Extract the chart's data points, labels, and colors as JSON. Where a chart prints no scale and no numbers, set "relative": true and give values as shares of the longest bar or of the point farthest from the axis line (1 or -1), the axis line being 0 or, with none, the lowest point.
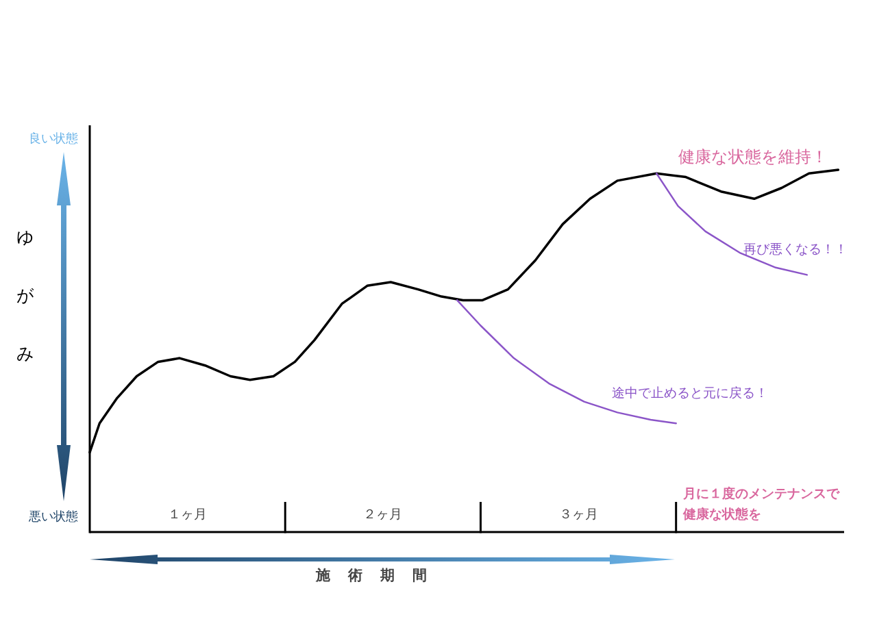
{
  "chart_data": {
    "type": "line",
    "relative": true,
    "xlabel": "施術期間",
    "ylabel": "ゆがみ",
    "xlim": [
      0,
      3.86
    ],
    "xticks": [
      {
        "value": 0.5,
        "label": "１ヶ月"
      },
      {
        "value": 1.5,
        "label": "２ヶ月"
      },
      {
        "value": 2.5,
        "label": "３ヶ月"
      }
    ],
    "ref_lines": [
      {
        "axis": "x",
        "value": 1,
        "color": "#000000"
      },
      {
        "axis": "x",
        "value": 2,
        "color": "#000000"
      },
      {
        "axis": "x",
        "value": 3,
        "color": "#000000"
      }
    ],
    "series": [
      {
        "color": "#000000",
        "x": [
          0,
          0.05,
          0.14,
          0.24,
          0.35,
          0.46,
          0.59,
          0.72,
          0.82,
          0.94,
          1.05,
          1.15,
          1.29,
          1.42,
          1.54,
          1.68,
          1.8,
          1.91,
          2.01,
          2.14,
          2.28,
          2.42,
          2.56,
          2.7,
          2.9,
          3.05,
          3.23,
          3.4,
          3.54,
          3.68,
          3.83
        ],
        "values": [
          0.22,
          0.3,
          0.37,
          0.43,
          0.47,
          0.48,
          0.46,
          0.43,
          0.42,
          0.43,
          0.47,
          0.53,
          0.63,
          0.68,
          0.69,
          0.67,
          0.65,
          0.64,
          0.64,
          0.67,
          0.75,
          0.85,
          0.92,
          0.97,
          0.99,
          0.98,
          0.94,
          0.92,
          0.95,
          0.99,
          1.0
        ]
      },
      {
        "color": "#8b55c8",
        "x": [
          1.88,
          2.0,
          2.17,
          2.35,
          2.53,
          2.7,
          2.87,
          3.0
        ],
        "values": [
          0.64,
          0.57,
          0.48,
          0.41,
          0.36,
          0.33,
          0.31,
          0.3
        ]
      },
      {
        "color": "#8b55c8",
        "x": [
          2.9,
          3.01,
          3.15,
          3.33,
          3.51,
          3.67
        ],
        "values": [
          0.99,
          0.9,
          0.83,
          0.77,
          0.73,
          0.71
        ]
      }
    ],
    "annotations": [
      {
        "text": "健康な状態を維持！",
        "x": 3.23,
        "y": 0.94
      },
      {
        "text": "再び悪くなる！！",
        "x": 3.51,
        "y": 0.73
      },
      {
        "text": "途中で止めると元に戻る！",
        "x": 2.87,
        "y": 0.31
      },
      "月に１度のメンテナンスで健康な状態を",
      "良い状態",
      "悪い状態"
    ]
  }
}
